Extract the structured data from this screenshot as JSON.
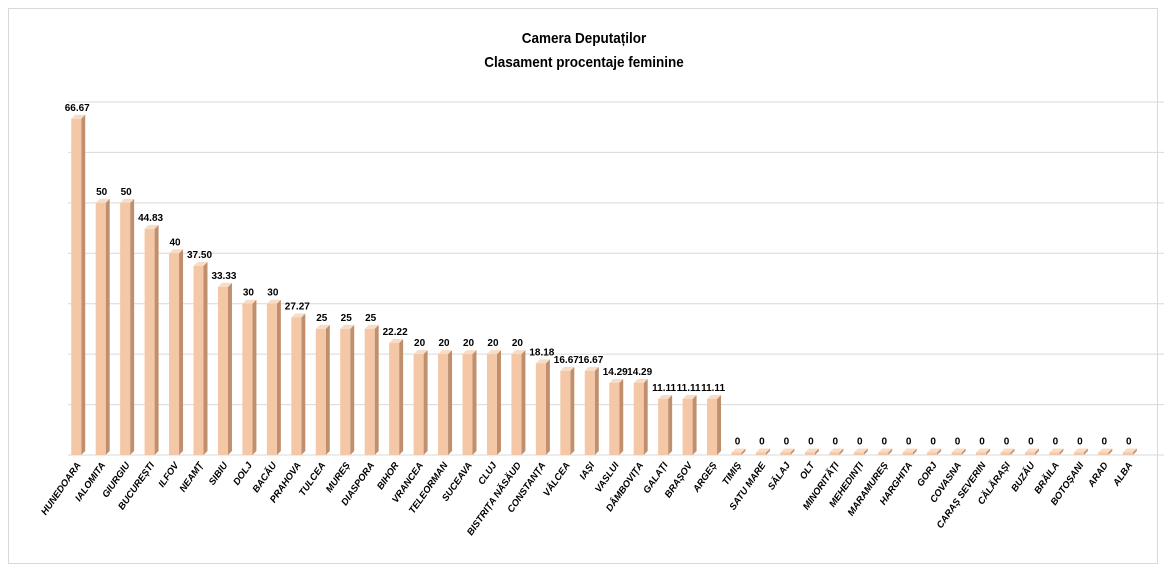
{
  "chart_data": {
    "type": "bar",
    "title": "Camera Deputaților",
    "subtitle": "Clasament procentaje feminine",
    "categories": [
      "HUNEDOARA",
      "IALOMITA",
      "GIURGIU",
      "BUCUREȘTI",
      "ILFOV",
      "NEAMȚ",
      "SIBIU",
      "DOLJ",
      "BACĂU",
      "PRAHOVA",
      "TULCEA",
      "MUREȘ",
      "DIASPORA",
      "BIHOR",
      "VRANCEA",
      "TELEORMAN",
      "SUCEAVA",
      "CLUJ",
      "BISTRIȚA NĂSĂUD",
      "CONSTANȚA",
      "VÂLCEA",
      "IAȘI",
      "VASLUI",
      "DÂMBOVIȚA",
      "GALAȚI",
      "BRAȘOV",
      "ARGEȘ",
      "TIMIȘ",
      "SATU MARE",
      "SĂLAJ",
      "OLT",
      "MINORITĂȚI",
      "MEHEDINȚI",
      "MARAMUREȘ",
      "HARGHITA",
      "GORJ",
      "COVASNA",
      "CARAȘ SEVERIN",
      "CĂLĂRAȘI",
      "BUZĂU",
      "BRĂILA",
      "BOTOȘANI",
      "ARAD",
      "ALBA"
    ],
    "values": [
      66.67,
      50,
      50,
      44.83,
      40,
      37.5,
      33.33,
      30,
      30,
      27.27,
      25,
      25,
      25,
      22.22,
      20,
      20,
      20,
      20,
      20,
      18.18,
      16.67,
      16.67,
      14.29,
      14.29,
      11.11,
      11.11,
      11.11,
      0,
      0,
      0,
      0,
      0,
      0,
      0,
      0,
      0,
      0,
      0,
      0,
      0,
      0,
      0,
      0,
      0
    ],
    "labels": [
      "66.67",
      "50",
      "50",
      "44.83",
      "40",
      "37.50",
      "33.33",
      "30",
      "30",
      "27.27",
      "25",
      "25",
      "25",
      "22.22",
      "20",
      "20",
      "20",
      "20",
      "20",
      "18.18",
      "16.67",
      "16.67",
      "14.29",
      "14.29",
      "11.11",
      "11.11",
      "11.11",
      "0",
      "0",
      "0",
      "0",
      "0",
      "0",
      "0",
      "0",
      "0",
      "0",
      "0",
      "0",
      "0",
      "0",
      "0",
      "0",
      "0"
    ],
    "ylim": [
      0,
      70
    ],
    "grid": true,
    "legend": "none",
    "bar_color": "#f4c7a6",
    "bar_side_color": "#c08f6d",
    "bar_top_color": "#f8dcc5",
    "grid_color": "#d9d9d9"
  }
}
